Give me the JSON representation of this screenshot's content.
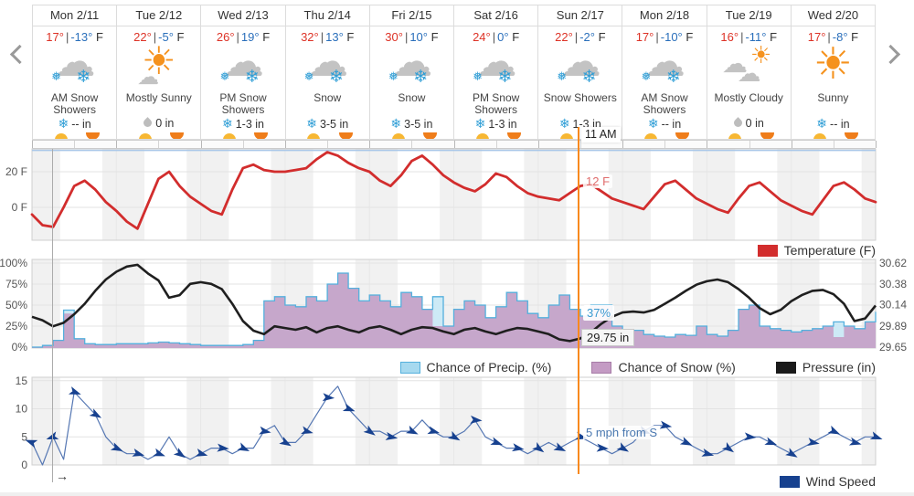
{
  "forecast": {
    "days": [
      {
        "name": "Mon 2/11",
        "hi": "17°",
        "lo": "-13°",
        "unit": "F",
        "condition": "AM Snow Showers",
        "icon": "snow-showers",
        "precip_icon": "snowflake",
        "amount": "-- in"
      },
      {
        "name": "Tue 2/12",
        "hi": "22°",
        "lo": "-5°",
        "unit": "F",
        "condition": "Mostly Sunny",
        "icon": "mostly-sunny",
        "precip_icon": "droplet",
        "amount": "0 in"
      },
      {
        "name": "Wed 2/13",
        "hi": "26°",
        "lo": "19°",
        "unit": "F",
        "condition": "PM Snow Showers",
        "icon": "snow-showers",
        "precip_icon": "snowflake",
        "amount": "1-3 in"
      },
      {
        "name": "Thu 2/14",
        "hi": "32°",
        "lo": "13°",
        "unit": "F",
        "condition": "Snow",
        "icon": "snow",
        "precip_icon": "snowflake",
        "amount": "3-5 in"
      },
      {
        "name": "Fri 2/15",
        "hi": "30°",
        "lo": "10°",
        "unit": "F",
        "condition": "Snow",
        "icon": "snow",
        "precip_icon": "snowflake",
        "amount": "3-5 in"
      },
      {
        "name": "Sat 2/16",
        "hi": "24°",
        "lo": "0°",
        "unit": "F",
        "condition": "PM Snow Showers",
        "icon": "snow-showers",
        "precip_icon": "snowflake",
        "amount": "1-3 in"
      },
      {
        "name": "Sun 2/17",
        "hi": "22°",
        "lo": "-2°",
        "unit": "F",
        "condition": "Snow Showers",
        "icon": "snow-showers",
        "precip_icon": "snowflake",
        "amount": "1-3 in"
      },
      {
        "name": "Mon 2/18",
        "hi": "17°",
        "lo": "-10°",
        "unit": "F",
        "condition": "AM Snow Showers",
        "icon": "snow-showers",
        "precip_icon": "snowflake",
        "amount": "-- in"
      },
      {
        "name": "Tue 2/19",
        "hi": "16°",
        "lo": "-11°",
        "unit": "F",
        "condition": "Mostly Cloudy",
        "icon": "mostly-cloudy",
        "precip_icon": "droplet",
        "amount": "0 in"
      },
      {
        "name": "Wed 2/20",
        "hi": "17°",
        "lo": "-8°",
        "unit": "F",
        "condition": "Sunny",
        "icon": "sunny",
        "precip_icon": "snowflake",
        "amount": "-- in"
      }
    ],
    "temp_separator": "|"
  },
  "cursor": {
    "hour": 155.5,
    "time_label": "11 AM",
    "temp_label": "12 F",
    "precip_label": "37%",
    "pressure_label": "29.75 in",
    "wind_label": "5 mph from S",
    "color": "#f8891e"
  },
  "scrubber": {
    "hour": 6,
    "arrow_glyph": "→"
  },
  "colors": {
    "temperature": "#d22d2d",
    "freezing_line": "#a9c7e8",
    "precip_fill": "#cdeaf6",
    "precip_line": "#54b0dd",
    "snow_fill": "#c5a0c7",
    "snow_border": "#a77ca7",
    "pressure": "#1f1f1f",
    "wind": "#17418f",
    "wind_line": "#5577b3",
    "night_band": "#f1f1f1",
    "grid": "#e3e3e3",
    "plot_border": "#cfcfcf"
  },
  "chart_data": [
    {
      "type": "line",
      "name": "temperature",
      "x_start_label": "Mon 2/11",
      "x_end_label": "Wed 2/20",
      "x_hours": 240,
      "step_hours": 3,
      "ylim": [
        -18,
        33
      ],
      "yticks": [
        {
          "value": 20,
          "label": "20 F"
        },
        {
          "value": 0,
          "label": "0 F"
        }
      ],
      "freezing_line_f": 32,
      "legend": {
        "label": "Temperature (F)",
        "color": "#d22d2d"
      },
      "series": [
        {
          "name": "Temperature (F)",
          "values": [
            -4,
            -10,
            -11,
            0,
            12,
            15,
            10,
            3,
            -2,
            -8,
            -12,
            2,
            16,
            20,
            12,
            6,
            2,
            -2,
            -4,
            10,
            22,
            24,
            21,
            20,
            20,
            21,
            22,
            27,
            31,
            29,
            25,
            22,
            20,
            15,
            12,
            18,
            26,
            29,
            24,
            18,
            14,
            11,
            9,
            13,
            19,
            17,
            12,
            8,
            6,
            5,
            4,
            8,
            12,
            13,
            9,
            5,
            3,
            1,
            -1,
            6,
            13,
            15,
            10,
            5,
            2,
            -1,
            -3,
            5,
            12,
            14,
            9,
            4,
            1,
            -2,
            -4,
            4,
            12,
            14,
            10,
            5,
            3
          ]
        }
      ]
    },
    {
      "type": "area+line",
      "name": "precip-snow-pressure",
      "x_hours": 240,
      "step_hours": 3,
      "left_ylim": [
        0,
        105
      ],
      "left_yticks": [
        {
          "value": 0,
          "label": "0%"
        },
        {
          "value": 25,
          "label": "25%"
        },
        {
          "value": 50,
          "label": "50%"
        },
        {
          "value": 75,
          "label": "75%"
        },
        {
          "value": 100,
          "label": "100%"
        }
      ],
      "right_ylim": [
        29.65,
        30.62
      ],
      "right_yticks": [
        {
          "value": 30.62,
          "label": "30.62"
        },
        {
          "value": 30.38,
          "label": "30.38"
        },
        {
          "value": 30.14,
          "label": "30.14"
        },
        {
          "value": 29.89,
          "label": "29.89"
        },
        {
          "value": 29.65,
          "label": "29.65"
        }
      ],
      "legend": [
        {
          "label": "Chance of Precip. (%)",
          "color": "#a6d9ef",
          "border": "#54b0dd"
        },
        {
          "label": "Chance of Snow (%)",
          "color": "#c49bc4",
          "border": "#a77ca7"
        },
        {
          "label": "Pressure (in)",
          "color": "#1a1a1a",
          "border": "#1a1a1a"
        }
      ],
      "series": [
        {
          "name": "Chance of Precip. (%)",
          "style": "step-area",
          "axis": "left",
          "values": [
            0,
            2,
            8,
            44,
            10,
            4,
            3,
            3,
            4,
            4,
            4,
            5,
            6,
            5,
            4,
            3,
            2,
            2,
            2,
            2,
            3,
            8,
            55,
            60,
            50,
            48,
            60,
            55,
            75,
            88,
            70,
            55,
            62,
            55,
            48,
            65,
            60,
            45,
            60,
            25,
            45,
            55,
            50,
            35,
            48,
            65,
            55,
            40,
            35,
            50,
            62,
            45,
            37,
            50,
            50,
            25,
            15,
            20,
            15,
            13,
            12,
            15,
            14,
            25,
            15,
            13,
            20,
            45,
            50,
            25,
            22,
            20,
            18,
            20,
            22,
            25,
            30,
            25,
            22,
            30,
            42
          ]
        },
        {
          "name": "Chance of Snow (%)",
          "style": "step-area",
          "axis": "left",
          "values": [
            0,
            2,
            8,
            40,
            10,
            4,
            3,
            3,
            4,
            4,
            4,
            5,
            6,
            5,
            4,
            3,
            2,
            2,
            2,
            2,
            3,
            8,
            55,
            60,
            50,
            48,
            60,
            55,
            75,
            88,
            70,
            55,
            62,
            55,
            48,
            65,
            60,
            45,
            25,
            25,
            45,
            55,
            50,
            35,
            48,
            65,
            55,
            40,
            35,
            50,
            62,
            45,
            37,
            50,
            50,
            25,
            15,
            20,
            15,
            13,
            12,
            15,
            14,
            25,
            15,
            13,
            20,
            45,
            50,
            25,
            22,
            20,
            18,
            20,
            22,
            25,
            12,
            25,
            22,
            30,
            40
          ]
        },
        {
          "name": "Pressure (in)",
          "style": "line",
          "axis": "right",
          "values": [
            30.0,
            29.96,
            29.89,
            29.93,
            30.03,
            30.15,
            30.3,
            30.43,
            30.52,
            30.58,
            30.6,
            30.5,
            30.42,
            30.22,
            30.25,
            30.38,
            30.4,
            30.38,
            30.32,
            30.15,
            29.95,
            29.84,
            29.8,
            29.89,
            29.87,
            29.85,
            29.88,
            29.82,
            29.87,
            29.89,
            29.85,
            29.82,
            29.87,
            29.89,
            29.85,
            29.8,
            29.85,
            29.88,
            29.87,
            29.83,
            29.8,
            29.85,
            29.87,
            29.83,
            29.8,
            29.84,
            29.87,
            29.86,
            29.83,
            29.8,
            29.74,
            29.72,
            29.75,
            29.82,
            29.92,
            30.0,
            30.05,
            30.06,
            30.05,
            30.08,
            30.15,
            30.22,
            30.3,
            30.37,
            30.41,
            30.43,
            30.4,
            30.32,
            30.22,
            30.1,
            30.03,
            30.08,
            30.18,
            30.25,
            30.3,
            30.31,
            30.26,
            30.15,
            29.95,
            29.98,
            30.13
          ]
        }
      ]
    },
    {
      "type": "line",
      "name": "wind",
      "x_hours": 240,
      "step_hours": 3,
      "ylim": [
        0,
        15.5
      ],
      "yticks": [
        {
          "value": 15,
          "label": "15"
        },
        {
          "value": 10,
          "label": "10"
        },
        {
          "value": 5,
          "label": "5"
        },
        {
          "value": 0,
          "label": "0"
        }
      ],
      "legend": {
        "label": "Wind Speed",
        "color": "#17418f"
      },
      "series": [
        {
          "name": "Wind Speed",
          "values": [
            4,
            0,
            5,
            1,
            13,
            11,
            9,
            5,
            3,
            2,
            2,
            1,
            2,
            5,
            2,
            1,
            2,
            3,
            3,
            2,
            3,
            3,
            6,
            7,
            4,
            4,
            6,
            9,
            12,
            14,
            10,
            8,
            6,
            6,
            5,
            6,
            6,
            8,
            6,
            5,
            5,
            6,
            8,
            5,
            4,
            3,
            3,
            2,
            3,
            4,
            3,
            4,
            5,
            4,
            3,
            2,
            3,
            4,
            6,
            7,
            7,
            5,
            4,
            3,
            2,
            2,
            3,
            4,
            5,
            5,
            4,
            3,
            2,
            3,
            4,
            5,
            6,
            5,
            4,
            5,
            5
          ],
          "marker_rotations_deg": [
            200,
            160,
            20,
            30,
            25,
            15,
            20,
            35,
            15,
            5,
            25,
            10,
            30,
            15,
            5,
            20,
            35,
            10,
            25,
            15,
            30,
            5,
            20,
            10,
            35,
            25,
            15,
            5,
            30,
            20,
            10,
            25,
            15,
            35,
            5,
            20,
            30,
            10,
            25,
            15,
            20
          ]
        }
      ]
    }
  ]
}
